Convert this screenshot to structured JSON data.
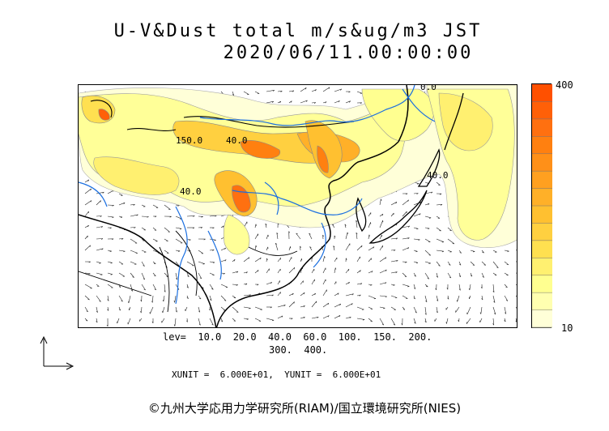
{
  "title_line1": "U-V&Dust total m/s&ug/m3 JST",
  "title_line2": "2020/06/11.00:00:00",
  "colorbar": {
    "max_label": "400",
    "min_label": "10",
    "colors": [
      "#ffffd8",
      "#ffffb0",
      "#ffff90",
      "#fff070",
      "#ffe050",
      "#ffd040",
      "#ffc030",
      "#ffb028",
      "#ffa020",
      "#ff9018",
      "#ff8010",
      "#ff7010",
      "#ff6008",
      "#ff5000"
    ]
  },
  "map_labels": {
    "contour_1": "150.0",
    "contour_2": "40.0",
    "contour_3": "40.0",
    "contour_4": "0.0",
    "contour_5": "40.0"
  },
  "levels_line1": "lev=  10.0  20.0  40.0  60.0  100.  150.  200.",
  "levels_line2": "300.  400.",
  "units_text": "XUNIT =  6.000E+01,  YUNIT =  6.000E+01",
  "credit": "©九州大学応用力学研究所(RIAM)/国立環境研究所(NIES)"
}
